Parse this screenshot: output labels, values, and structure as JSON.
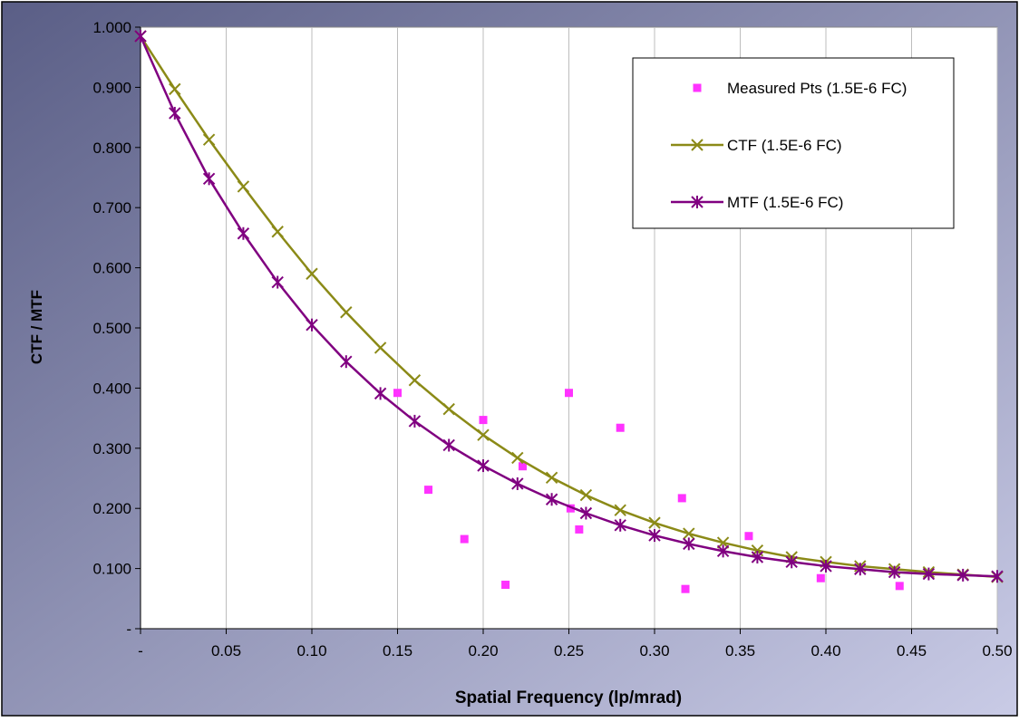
{
  "chart_data": {
    "type": "scatter",
    "xlabel": "Spatial Frequency (lp/mrad)",
    "ylabel": "CTF / MTF",
    "xlim": [
      0,
      0.5
    ],
    "ylim": [
      0,
      1.0
    ],
    "x_ticks": [
      0,
      0.05,
      0.1,
      0.15,
      0.2,
      0.25,
      0.3,
      0.35,
      0.4,
      0.45,
      0.5
    ],
    "x_tick_labels": [
      "-",
      "0.05",
      "0.10",
      "0.15",
      "0.20",
      "0.25",
      "0.30",
      "0.35",
      "0.40",
      "0.45",
      "0.50"
    ],
    "y_ticks": [
      0,
      0.1,
      0.2,
      0.3,
      0.4,
      0.5,
      0.6,
      0.7,
      0.8,
      0.9,
      1.0
    ],
    "y_tick_labels": [
      "-",
      "0.100",
      "0.200",
      "0.300",
      "0.400",
      "0.500",
      "0.600",
      "0.700",
      "0.800",
      "0.900",
      "1.000"
    ],
    "grid": "vertical",
    "legend_position": "top-right",
    "background": {
      "outer_gradient": [
        "#5a5e86",
        "#c9cbe6"
      ],
      "plot": "#ffffff"
    },
    "series": [
      {
        "name": "Measured Pts (1.5E-6 FC)",
        "style": "markers-only",
        "marker": "square",
        "color": "#ff33ff",
        "points": [
          [
            0.15,
            0.392
          ],
          [
            0.168,
            0.231
          ],
          [
            0.189,
            0.149
          ],
          [
            0.2,
            0.347
          ],
          [
            0.213,
            0.073
          ],
          [
            0.223,
            0.27
          ],
          [
            0.25,
            0.392
          ],
          [
            0.251,
            0.2
          ],
          [
            0.256,
            0.165
          ],
          [
            0.28,
            0.334
          ],
          [
            0.316,
            0.217
          ],
          [
            0.318,
            0.066
          ],
          [
            0.355,
            0.154
          ],
          [
            0.397,
            0.084
          ],
          [
            0.443,
            0.071
          ]
        ]
      },
      {
        "name": "CTF (1.5E-6 FC)",
        "style": "line-markers",
        "marker": "x",
        "color": "#8b8a17",
        "points": [
          [
            0.0,
            0.985
          ],
          [
            0.02,
            0.897
          ],
          [
            0.04,
            0.813
          ],
          [
            0.06,
            0.735
          ],
          [
            0.08,
            0.66
          ],
          [
            0.1,
            0.59
          ],
          [
            0.12,
            0.526
          ],
          [
            0.14,
            0.467
          ],
          [
            0.16,
            0.413
          ],
          [
            0.18,
            0.365
          ],
          [
            0.2,
            0.322
          ],
          [
            0.22,
            0.284
          ],
          [
            0.24,
            0.251
          ],
          [
            0.26,
            0.222
          ],
          [
            0.28,
            0.197
          ],
          [
            0.3,
            0.176
          ],
          [
            0.32,
            0.158
          ],
          [
            0.34,
            0.143
          ],
          [
            0.36,
            0.13
          ],
          [
            0.38,
            0.119
          ],
          [
            0.4,
            0.111
          ],
          [
            0.42,
            0.104
          ],
          [
            0.44,
            0.099
          ],
          [
            0.46,
            0.094
          ],
          [
            0.48,
            0.09
          ],
          [
            0.5,
            0.086
          ]
        ]
      },
      {
        "name": "MTF (1.5E-6 FC)",
        "style": "line-markers",
        "marker": "asterisk",
        "color": "#800080",
        "points": [
          [
            0.0,
            0.985
          ],
          [
            0.02,
            0.857
          ],
          [
            0.04,
            0.748
          ],
          [
            0.06,
            0.657
          ],
          [
            0.08,
            0.576
          ],
          [
            0.1,
            0.505
          ],
          [
            0.12,
            0.444
          ],
          [
            0.14,
            0.391
          ],
          [
            0.16,
            0.345
          ],
          [
            0.18,
            0.305
          ],
          [
            0.2,
            0.271
          ],
          [
            0.22,
            0.241
          ],
          [
            0.24,
            0.215
          ],
          [
            0.26,
            0.192
          ],
          [
            0.28,
            0.172
          ],
          [
            0.3,
            0.155
          ],
          [
            0.32,
            0.141
          ],
          [
            0.34,
            0.129
          ],
          [
            0.36,
            0.119
          ],
          [
            0.38,
            0.111
          ],
          [
            0.4,
            0.104
          ],
          [
            0.42,
            0.099
          ],
          [
            0.44,
            0.094
          ],
          [
            0.46,
            0.091
          ],
          [
            0.48,
            0.089
          ],
          [
            0.5,
            0.087
          ]
        ]
      }
    ]
  }
}
